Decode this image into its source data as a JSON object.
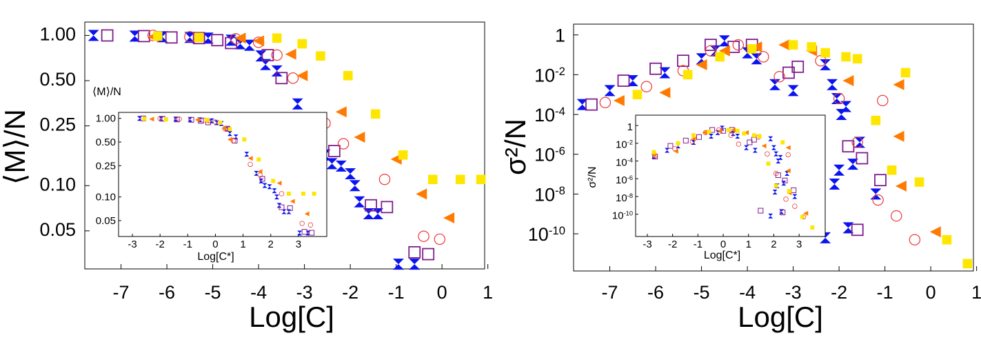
{
  "chart_data": [
    {
      "id": "left-main",
      "type": "scatter",
      "title": "",
      "xlabel": "Log[C]",
      "ylabel": "⟨M⟩/N",
      "y_scale": "log",
      "xlim": [
        -7.7,
        0.9
      ],
      "ylim": [
        0.0285,
        1.14
      ],
      "x_ticks": [
        {
          "v": -7,
          "label": "-7"
        },
        {
          "v": -6,
          "label": "-6"
        },
        {
          "v": -5,
          "label": "-5"
        },
        {
          "v": -4,
          "label": "-4"
        },
        {
          "v": -3,
          "label": "-3"
        },
        {
          "v": -2,
          "label": "-2"
        },
        {
          "v": -1,
          "label": "-1"
        },
        {
          "v": 0,
          "label": "0"
        },
        {
          "v": 1,
          "label": "1"
        }
      ],
      "y_ticks": [
        {
          "v": 1.0,
          "label": "1.00"
        },
        {
          "v": 0.5,
          "label": "0.50"
        },
        {
          "v": 0.25,
          "label": "0.25"
        },
        {
          "v": 0.1,
          "label": "0.10"
        },
        {
          "v": 0.05,
          "label": "0.05"
        }
      ],
      "series": [
        {
          "name": "blue-hourglass",
          "marker": "hourglass",
          "color": "#0a14f0",
          "points": [
            [
              -7.6,
              1.0
            ],
            [
              -6.7,
              0.99
            ],
            [
              -6.1,
              0.98
            ],
            [
              -5.5,
              0.97
            ],
            [
              -5.1,
              0.96
            ],
            [
              -4.6,
              0.93
            ],
            [
              -4.4,
              0.88
            ],
            [
              -4.2,
              0.86
            ],
            [
              -3.95,
              0.73
            ],
            [
              -3.85,
              0.64
            ],
            [
              -3.6,
              0.58
            ],
            [
              -3.15,
              0.35
            ],
            [
              -2.75,
              0.2
            ],
            [
              -2.55,
              0.16
            ],
            [
              -2.4,
              0.14
            ],
            [
              -2.2,
              0.135
            ],
            [
              -2.0,
              0.12
            ],
            [
              -1.9,
              0.1
            ],
            [
              -1.8,
              0.078
            ],
            [
              -1.6,
              0.065
            ],
            [
              -1.4,
              0.065
            ],
            [
              -0.95,
              0.03
            ],
            [
              -0.6,
              0.03
            ]
          ]
        },
        {
          "name": "purple-square",
          "marker": "square_open",
          "color": "#7d1a8c",
          "points": [
            [
              -7.3,
              1.0
            ],
            [
              -6.5,
              0.99
            ],
            [
              -5.9,
              0.97
            ],
            [
              -5.3,
              0.96
            ],
            [
              -4.9,
              0.93
            ],
            [
              -4.6,
              0.89
            ],
            [
              -3.8,
              0.74
            ],
            [
              -3.5,
              0.52
            ],
            [
              -2.35,
              0.17
            ],
            [
              -1.55,
              0.074
            ],
            [
              -1.2,
              0.072
            ],
            [
              -0.6,
              0.036
            ],
            [
              -0.3,
              0.035
            ]
          ]
        },
        {
          "name": "red-circle",
          "marker": "circle_open",
          "color": "#ec3a3a",
          "points": [
            [
              -6.3,
              1.0
            ],
            [
              -5.5,
              0.98
            ],
            [
              -4.5,
              0.95
            ],
            [
              -4.0,
              0.9
            ],
            [
              -3.6,
              0.74
            ],
            [
              -3.25,
              0.52
            ],
            [
              -2.55,
              0.26
            ],
            [
              -2.15,
              0.19
            ],
            [
              -1.25,
              0.11
            ],
            [
              -0.4,
              0.046
            ],
            [
              -0.05,
              0.044
            ]
          ]
        },
        {
          "name": "orange-triangle",
          "marker": "triangle_left",
          "color": "#ff7a00",
          "points": [
            [
              -6.3,
              0.98
            ],
            [
              -4.4,
              0.96
            ],
            [
              -4.0,
              0.92
            ],
            [
              -3.3,
              0.75
            ],
            [
              -3.05,
              0.54
            ],
            [
              -2.2,
              0.31
            ],
            [
              -1.8,
              0.21
            ],
            [
              -1.0,
              0.15
            ],
            [
              -0.45,
              0.088
            ],
            [
              0.15,
              0.061
            ]
          ]
        },
        {
          "name": "yellow-square",
          "marker": "square_filled",
          "color": "#ffe600",
          "points": [
            [
              -6.2,
              0.99
            ],
            [
              -5.3,
              0.97
            ],
            [
              -3.6,
              0.96
            ],
            [
              -3.05,
              0.88
            ],
            [
              -2.65,
              0.73
            ],
            [
              -2.05,
              0.54
            ],
            [
              -1.45,
              0.3
            ],
            [
              -0.85,
              0.16
            ],
            [
              -0.2,
              0.11
            ],
            [
              0.4,
              0.11
            ],
            [
              0.85,
              0.11
            ]
          ]
        }
      ],
      "inset": {
        "id": "left-inset",
        "xlabel": "Log[C*]",
        "ylabel": "⟨M⟩/N",
        "x_ticks": [
          {
            "v": -3,
            "label": "-3"
          },
          {
            "v": -2,
            "label": "-2"
          },
          {
            "v": -1,
            "label": "-1"
          },
          {
            "v": 0,
            "label": "0"
          },
          {
            "v": 1,
            "label": "1"
          },
          {
            "v": 2,
            "label": "2"
          },
          {
            "v": 3,
            "label": "3"
          }
        ],
        "y_ticks": [
          {
            "v": 1.0,
            "label": "1.00"
          },
          {
            "v": 0.5,
            "label": "0.50"
          },
          {
            "v": 0.25,
            "label": "0.25"
          },
          {
            "v": 0.1,
            "label": "0.10"
          },
          {
            "v": 0.05,
            "label": "0.05"
          }
        ],
        "xlim": [
          -3.3,
          3.95
        ],
        "ylim": [
          0.034,
          1.1
        ]
      }
    },
    {
      "id": "right-main",
      "type": "scatter",
      "title": "",
      "xlabel": "Log[C]",
      "ylabel": "σ²/N",
      "y_scale": "log",
      "xlim": [
        -7.7,
        0.9
      ],
      "ylim": [
        -11.8,
        0.3
      ],
      "x_ticks": [
        {
          "v": -7,
          "label": "-7"
        },
        {
          "v": -6,
          "label": "-6"
        },
        {
          "v": -5,
          "label": "-5"
        },
        {
          "v": -4,
          "label": "-4"
        },
        {
          "v": -3,
          "label": "-3"
        },
        {
          "v": -2,
          "label": "-2"
        },
        {
          "v": -1,
          "label": "-1"
        },
        {
          "v": 0,
          "label": "0"
        },
        {
          "v": 1,
          "label": "1"
        }
      ],
      "y_ticks": [
        {
          "v": 0,
          "base": "1",
          "exp": ""
        },
        {
          "v": -2,
          "base": "10",
          "exp": "-2"
        },
        {
          "v": -4,
          "base": "10",
          "exp": "-4"
        },
        {
          "v": -6,
          "base": "10",
          "exp": "-6"
        },
        {
          "v": -8,
          "base": "10",
          "exp": "-8"
        },
        {
          "v": -10,
          "base": "10",
          "exp": "-10"
        }
      ],
      "series": [
        {
          "name": "blue-hourglass",
          "marker": "hourglass",
          "color": "#0a14f0",
          "points": [
            [
              -7.6,
              -3.5
            ],
            [
              -7.0,
              -2.8
            ],
            [
              -6.5,
              -2.3
            ],
            [
              -5.8,
              -1.9
            ],
            [
              -5.0,
              -1.2
            ],
            [
              -4.7,
              -0.8
            ],
            [
              -4.5,
              -0.3
            ],
            [
              -4.0,
              -0.9
            ],
            [
              -3.8,
              -1.2
            ],
            [
              -3.4,
              -2.5
            ],
            [
              -3.0,
              -2.8
            ],
            [
              -2.3,
              -1.5
            ],
            [
              -2.15,
              -2.5
            ],
            [
              -2.05,
              -3.2
            ],
            [
              -1.95,
              -4.0
            ],
            [
              -1.85,
              -3.6
            ],
            [
              -2.0,
              -6.8
            ],
            [
              -2.1,
              -7.5
            ],
            [
              -1.7,
              -6.5
            ],
            [
              -1.55,
              -5.4
            ],
            [
              -1.2,
              -8.0
            ],
            [
              -1.8,
              -9.7
            ],
            [
              -2.3,
              -10.2
            ]
          ]
        },
        {
          "name": "purple-square",
          "marker": "square_open",
          "color": "#7d1a8c",
          "points": [
            [
              -7.4,
              -3.5
            ],
            [
              -6.7,
              -2.3
            ],
            [
              -6.0,
              -1.7
            ],
            [
              -5.4,
              -1.3
            ],
            [
              -4.8,
              -0.5
            ],
            [
              -4.3,
              -0.6
            ],
            [
              -3.9,
              -0.5
            ],
            [
              -3.1,
              -1.9
            ],
            [
              -2.9,
              -1.6
            ],
            [
              -1.8,
              -5.6
            ],
            [
              -1.5,
              -6.2
            ],
            [
              -1.1,
              -7.3
            ],
            [
              -2.6,
              -9.6
            ],
            [
              -1.6,
              -9.8
            ]
          ]
        },
        {
          "name": "red-circle",
          "marker": "circle_open",
          "color": "#ec3a3a",
          "points": [
            [
              -7.1,
              -3.4
            ],
            [
              -6.2,
              -2.6
            ],
            [
              -5.4,
              -1.8
            ],
            [
              -4.8,
              -0.8
            ],
            [
              -4.2,
              -0.5
            ],
            [
              -3.65,
              -1.1
            ],
            [
              -3.3,
              -2.1
            ],
            [
              -2.4,
              -1.3
            ],
            [
              -2.0,
              -3.2
            ],
            [
              -1.6,
              -5.4
            ],
            [
              -1.05,
              -3.3
            ],
            [
              -1.15,
              -8.3
            ],
            [
              -0.75,
              -9.1
            ],
            [
              -0.35,
              -10.3
            ]
          ]
        },
        {
          "name": "orange-triangle",
          "marker": "triangle_left",
          "color": "#ff7a00",
          "points": [
            [
              -6.8,
              -3.3
            ],
            [
              -5.8,
              -2.9
            ],
            [
              -5.0,
              -1.5
            ],
            [
              -4.5,
              -0.8
            ],
            [
              -3.8,
              -0.6
            ],
            [
              -3.2,
              -0.5
            ],
            [
              -2.6,
              -0.8
            ],
            [
              -1.8,
              -2.3
            ],
            [
              -0.7,
              -2.5
            ],
            [
              -0.7,
              -5.1
            ],
            [
              -0.65,
              -7.6
            ],
            [
              0.1,
              -9.9
            ]
          ]
        },
        {
          "name": "yellow-square",
          "marker": "square_filled",
          "color": "#ffe600",
          "points": [
            [
              -6.4,
              -3.0
            ],
            [
              -5.3,
              -2.0
            ],
            [
              -4.6,
              -1.1
            ],
            [
              -3.9,
              -0.7
            ],
            [
              -3.0,
              -0.5
            ],
            [
              -2.6,
              -0.6
            ],
            [
              -2.3,
              -0.9
            ],
            [
              -1.85,
              -1.1
            ],
            [
              -1.6,
              -1.2
            ],
            [
              -1.2,
              -4.3
            ],
            [
              -0.85,
              -6.8
            ],
            [
              -0.55,
              -1.9
            ],
            [
              -0.25,
              -7.4
            ],
            [
              0.35,
              -10.3
            ],
            [
              0.8,
              -11.5
            ]
          ]
        }
      ],
      "inset": {
        "id": "right-inset",
        "xlabel": "Log[C*]",
        "ylabel": "σ²/N",
        "x_ticks": [
          {
            "v": -3,
            "label": "-3"
          },
          {
            "v": -2,
            "label": "-2"
          },
          {
            "v": -1,
            "label": "-1"
          },
          {
            "v": 0,
            "label": "0"
          },
          {
            "v": 1,
            "label": "1"
          },
          {
            "v": 2,
            "label": "2"
          },
          {
            "v": 3,
            "label": "3"
          }
        ],
        "y_ticks": [
          {
            "v": 0,
            "base": "1",
            "exp": ""
          },
          {
            "v": -2,
            "base": "10",
            "exp": "-2"
          },
          {
            "v": -4,
            "base": "10",
            "exp": "-4"
          },
          {
            "v": -6,
            "base": "10",
            "exp": "-6"
          },
          {
            "v": -8,
            "base": "10",
            "exp": "-8"
          },
          {
            "v": -10,
            "base": "10",
            "exp": "-10"
          }
        ],
        "xlim": [
          -3.3,
          3.95
        ],
        "ylim": [
          -12.2,
          0.7
        ]
      }
    }
  ]
}
